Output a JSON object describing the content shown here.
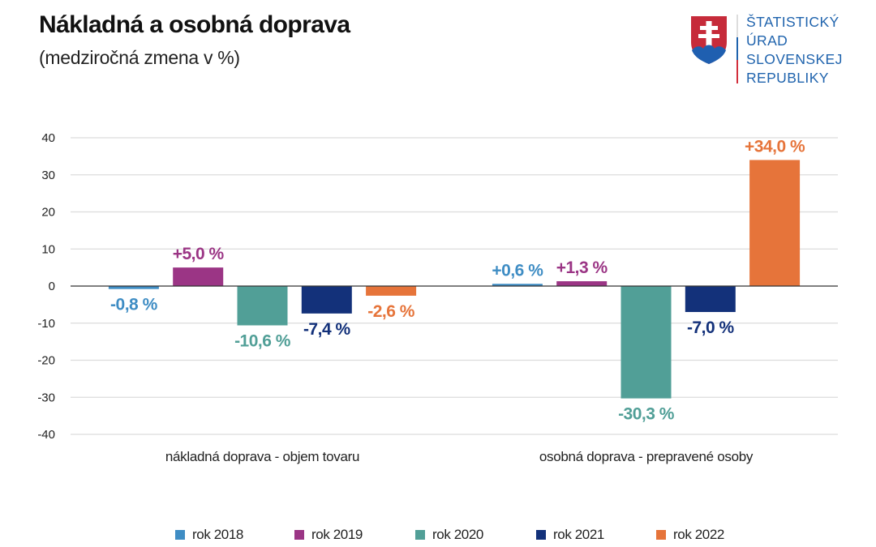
{
  "header": {
    "title": "Nákladná a osobná doprava",
    "subtitle": "(medziročná zmena v %)"
  },
  "logo": {
    "icon": "slovak-coat-of-arms-icon",
    "lines": [
      "ŠTATISTICKÝ",
      "ÚRAD",
      "SLOVENSKEJ",
      "REPUBLIKY"
    ],
    "colors": {
      "shield_red": "#c62b3a",
      "cross": "#ffffff",
      "hills": "#1f5fb0",
      "text": "#1f63ad"
    }
  },
  "chart_data": {
    "type": "bar",
    "title": "Nákladná a osobná doprava",
    "subtitle": "(medziročná zmena v %)",
    "xlabel": "",
    "ylabel": "",
    "ylim": [
      -40,
      40
    ],
    "yticks": [
      40,
      30,
      20,
      10,
      0,
      -10,
      -20,
      -30,
      -40
    ],
    "grid": true,
    "legend_position": "bottom",
    "categories": [
      "nákladná doprava - objem tovaru",
      "osobná doprava - prepravené osoby"
    ],
    "series": [
      {
        "name": "rok 2018",
        "color": "#3f8dc4",
        "values": [
          -0.8,
          0.6
        ],
        "labels": [
          "-0,8 %",
          "+0,6 %"
        ]
      },
      {
        "name": "rok 2019",
        "color": "#9b3585",
        "values": [
          5.0,
          1.3
        ],
        "labels": [
          "+5,0 %",
          "+1,3 %"
        ]
      },
      {
        "name": "rok 2020",
        "color": "#519f97",
        "values": [
          -10.6,
          -30.3
        ],
        "labels": [
          "-10,6 %",
          "-30,3 %"
        ]
      },
      {
        "name": "rok 2021",
        "color": "#13317a",
        "values": [
          -7.4,
          -7.0
        ],
        "labels": [
          "-7,4 %",
          "-7,0 %"
        ]
      },
      {
        "name": "rok 2022",
        "color": "#e6743a",
        "values": [
          -2.6,
          34.0
        ],
        "labels": [
          "-2,6 %",
          "+34,0 %"
        ]
      }
    ]
  }
}
